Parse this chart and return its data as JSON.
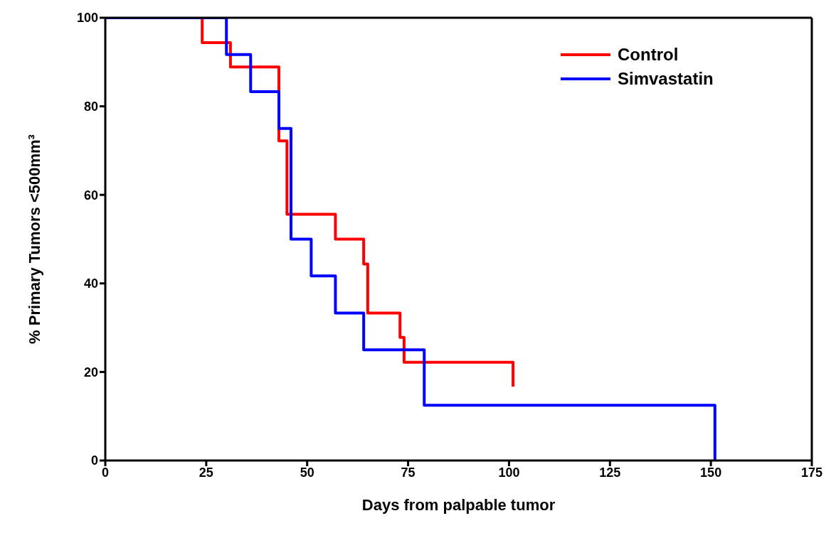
{
  "chart_data": {
    "type": "step",
    "xlabel": "Days from palpable tumor",
    "ylabel": "% Primary Tumors <500mm³",
    "series": [
      {
        "name": "Control",
        "color": "#ff0000",
        "x": [
          0,
          24,
          31,
          43,
          45,
          57,
          64,
          65,
          73,
          74,
          101
        ],
        "values": [
          100,
          94.4,
          88.9,
          72.2,
          55.6,
          50,
          44.4,
          33.3,
          27.8,
          22.2,
          16.7
        ]
      },
      {
        "name": "Simvastatin",
        "color": "#0000ff",
        "x": [
          0,
          30,
          36,
          43,
          46,
          51,
          57,
          64,
          79,
          151
        ],
        "values": [
          100,
          91.7,
          83.3,
          75,
          50,
          41.7,
          33.3,
          25,
          12.5,
          0
        ]
      }
    ],
    "xlim": [
      0,
      175
    ],
    "xticks": [
      0,
      25,
      50,
      75,
      100,
      125,
      150,
      175
    ],
    "ylim": [
      0,
      100
    ],
    "yticks": [
      0,
      20,
      40,
      60,
      80,
      100
    ],
    "legend": "top right",
    "marker": "none",
    "line_style": "solid"
  }
}
